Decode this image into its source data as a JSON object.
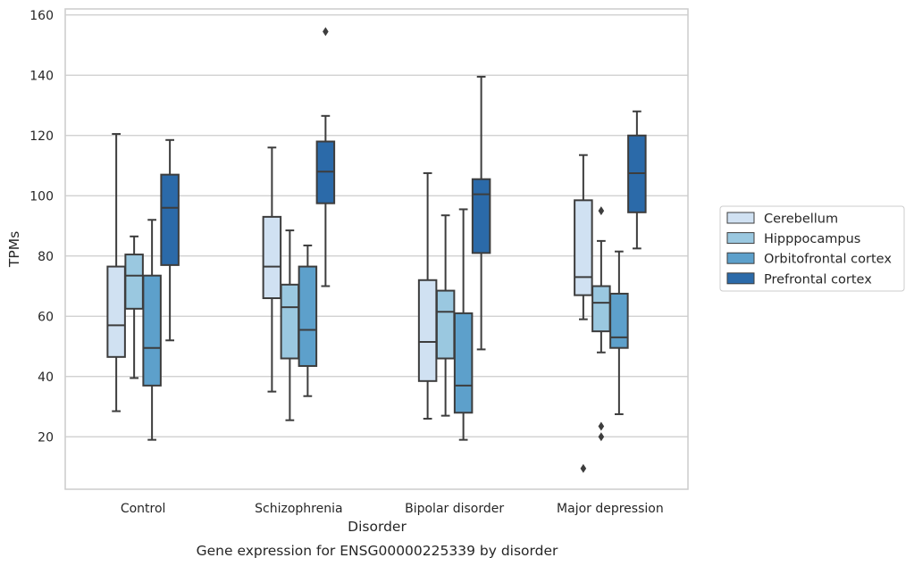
{
  "chart_data": {
    "type": "box",
    "title": "Gene expression for ENSG00000225339 by disorder",
    "xlabel": "Disorder",
    "ylabel": "TPMs",
    "ylim": [
      2.6,
      162
    ],
    "yticks": [
      20,
      40,
      60,
      80,
      100,
      120,
      140,
      160
    ],
    "grid": true,
    "legend": {
      "placement": "right"
    },
    "categories": [
      "Control",
      "Schizophrenia",
      "Bipolar disorder",
      "Major depression"
    ],
    "series": [
      {
        "name": "Cerebellum",
        "color": "#d0e1f2",
        "boxes": [
          {
            "whislo": 28.5,
            "q1": 46.5,
            "med": 57,
            "q3": 76.5,
            "whishi": 120.5,
            "fliers": []
          },
          {
            "whislo": 35,
            "q1": 66,
            "med": 76.5,
            "q3": 93,
            "whishi": 116,
            "fliers": []
          },
          {
            "whislo": 26,
            "q1": 38.5,
            "med": 51.5,
            "q3": 72,
            "whishi": 107.5,
            "fliers": []
          },
          {
            "whislo": 59,
            "q1": 67,
            "med": 73,
            "q3": 98.5,
            "whishi": 113.5,
            "fliers": [
              9.5
            ]
          }
        ]
      },
      {
        "name": "Hipppocampus",
        "color": "#9ac8e0",
        "boxes": [
          {
            "whislo": 39.5,
            "q1": 62.5,
            "med": 73.5,
            "q3": 80.5,
            "whishi": 86.5,
            "fliers": []
          },
          {
            "whislo": 25.5,
            "q1": 46,
            "med": 63,
            "q3": 70.5,
            "whishi": 88.5,
            "fliers": []
          },
          {
            "whislo": 27,
            "q1": 46,
            "med": 61.5,
            "q3": 68.5,
            "whishi": 93.5,
            "fliers": []
          },
          {
            "whislo": 48,
            "q1": 55,
            "med": 64.5,
            "q3": 70,
            "whishi": 85,
            "fliers": [
              95,
              23.5,
              20
            ]
          }
        ]
      },
      {
        "name": "Orbitofrontal cortex",
        "color": "#5da0cb",
        "boxes": [
          {
            "whislo": 19,
            "q1": 37,
            "med": 49.5,
            "q3": 73.5,
            "whishi": 92,
            "fliers": []
          },
          {
            "whislo": 33.5,
            "q1": 43.5,
            "med": 55.5,
            "q3": 76.5,
            "whishi": 83.5,
            "fliers": []
          },
          {
            "whislo": 19,
            "q1": 28,
            "med": 37,
            "q3": 61,
            "whishi": 95.5,
            "fliers": []
          },
          {
            "whislo": 27.5,
            "q1": 49.5,
            "med": 53,
            "q3": 67.5,
            "whishi": 81.5,
            "fliers": []
          }
        ]
      },
      {
        "name": "Prefrontal cortex",
        "color": "#2b6aa9",
        "boxes": [
          {
            "whislo": 52,
            "q1": 77,
            "med": 96,
            "q3": 107,
            "whishi": 118.5,
            "fliers": []
          },
          {
            "whislo": 70,
            "q1": 97.5,
            "med": 108,
            "q3": 118,
            "whishi": 126.5,
            "fliers": [
              154.5
            ]
          },
          {
            "whislo": 49,
            "q1": 81,
            "med": 100.5,
            "q3": 105.5,
            "whishi": 139.5,
            "fliers": []
          },
          {
            "whislo": 82.5,
            "q1": 94.5,
            "med": 107.5,
            "q3": 120,
            "whishi": 128,
            "fliers": []
          }
        ]
      }
    ]
  }
}
